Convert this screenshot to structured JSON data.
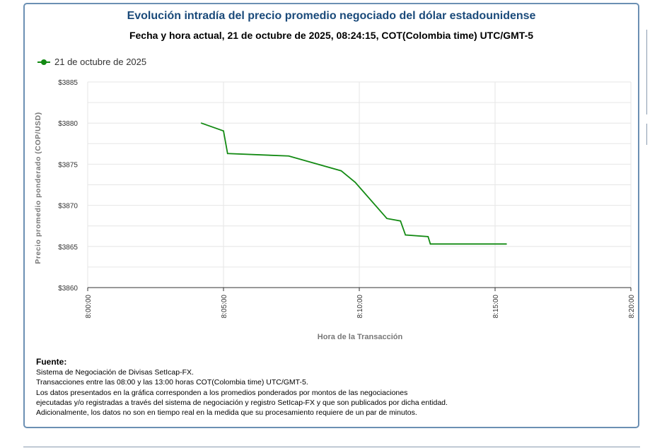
{
  "header": {
    "title": "Evolución intradía del precio promedio negociado del dólar estadounidense",
    "subtitle": "Fecha y hora actual, 21 de octubre de 2025, 08:24:15, COT(Colombia time) UTC/GMT-5"
  },
  "chart_data": {
    "type": "line",
    "title": "Evolución intradía del precio promedio negociado del dólar estadounidense",
    "xlabel": "Hora de la Transacción",
    "ylabel": "Precio promedio ponderado (COP/USD)",
    "xlim": [
      "8:00:00",
      "8:20:00"
    ],
    "ylim": [
      3860,
      3885
    ],
    "x_ticks": [
      "8:00:00",
      "8:05:00",
      "8:10:00",
      "8:15:00",
      "8:20:00"
    ],
    "y_ticks": [
      "$3860",
      "$3865",
      "$3870",
      "$3875",
      "$3880",
      "$3885"
    ],
    "grid": true,
    "legend_position": "top-left",
    "series": [
      {
        "name": "21 de octubre de 2025",
        "color": "#138a13",
        "x": [
          "8:04:11",
          "8:05:00",
          "8:05:09",
          "8:07:24",
          "8:09:20",
          "8:09:51",
          "8:11:01",
          "8:11:31",
          "8:11:42",
          "8:12:32",
          "8:12:37",
          "8:15:25"
        ],
        "y": [
          3880.0,
          3879.05,
          3876.3,
          3876.0,
          3874.2,
          3872.8,
          3868.4,
          3868.1,
          3866.4,
          3866.2,
          3865.3,
          3865.3
        ]
      }
    ]
  },
  "footer": {
    "heading": "Fuente:",
    "lines": [
      "Sistema de Negociación de Divisas SetIcap-FX.",
      "Transacciones entre las 08:00 y las 13:00 horas COT(Colombia time) UTC/GMT-5.",
      "Los datos presentados en la gráfica corresponden a los promedios ponderados por montos de las negociaciones",
      "ejecutadas y/o registradas a través del sistema de negociación y registro SetIcap-FX y que son publicados por dicha entidad.",
      "Adicionalmente, los datos no son en tiempo real en la medida que su procesamiento requiere de un par de minutos."
    ]
  }
}
